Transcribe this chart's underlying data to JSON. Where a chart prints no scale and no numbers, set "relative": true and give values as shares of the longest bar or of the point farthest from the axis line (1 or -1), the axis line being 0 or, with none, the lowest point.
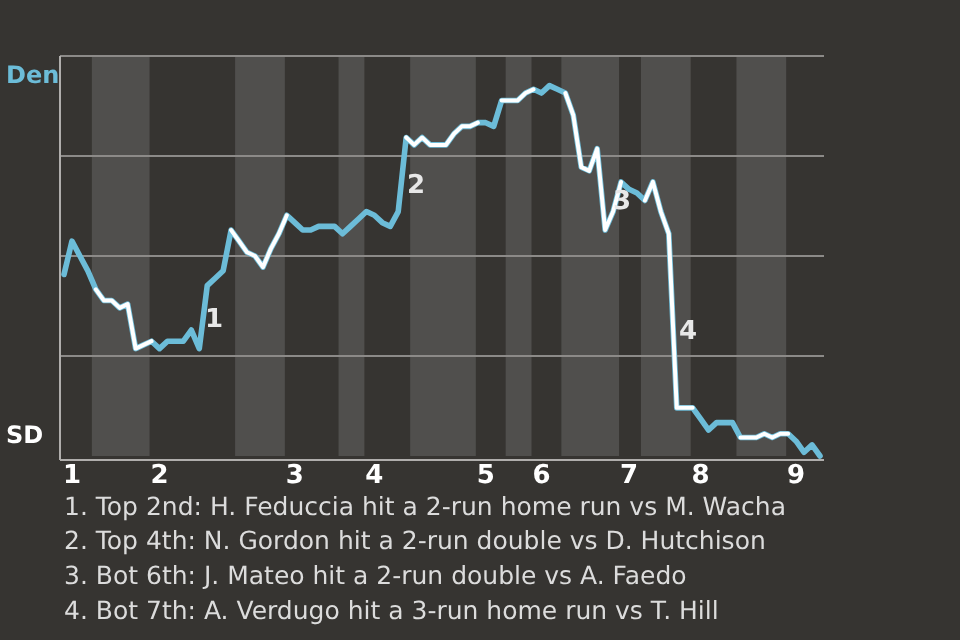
{
  "chart_data": {
    "type": "line",
    "relative": true,
    "categories": [
      null,
      "1",
      null,
      null,
      null,
      null,
      null,
      null,
      null,
      null,
      null,
      null,
      "2",
      null,
      null,
      null,
      null,
      null,
      null,
      null,
      null,
      null,
      null,
      null,
      null,
      null,
      null,
      null,
      null,
      "3",
      null,
      null,
      null,
      null,
      null,
      null,
      null,
      null,
      null,
      "4",
      null,
      null,
      null,
      null,
      null,
      null,
      null,
      null,
      null,
      null,
      null,
      null,
      null,
      "5",
      null,
      null,
      null,
      null,
      null,
      null,
      "6",
      null,
      null,
      null,
      null,
      null,
      null,
      null,
      null,
      null,
      null,
      "7",
      null,
      null,
      null,
      null,
      null,
      null,
      null,
      null,
      "8",
      null,
      null,
      null,
      null,
      null,
      null,
      null,
      null,
      null,
      null,
      null,
      "9",
      null,
      null,
      null
    ],
    "grid": "y",
    "marker": "none",
    "line_style": "solid",
    "series": [
      {
        "name": "Den",
        "color": "#6cbcd8",
        "values": [
          0.49,
          0.58,
          0.54,
          0.5,
          0.45,
          0.42,
          0.42,
          0.4,
          0.41,
          0.29,
          0.3,
          0.31,
          0.29,
          0.31,
          0.31,
          0.31,
          0.34,
          0.29,
          0.46,
          0.48,
          0.5,
          0.61,
          0.58,
          0.55,
          0.54,
          0.51,
          0.56,
          0.6,
          0.65,
          0.63,
          0.61,
          0.61,
          0.62,
          0.62,
          0.62,
          0.6,
          0.62,
          0.64,
          0.66,
          0.65,
          0.63,
          0.62,
          0.66,
          0.86,
          0.84,
          0.86,
          0.84,
          0.84,
          0.84,
          0.87,
          0.89,
          0.89,
          0.9,
          0.9,
          0.89,
          0.96,
          0.96,
          0.96,
          0.98,
          0.99,
          0.98,
          1,
          0.99,
          0.98,
          0.92,
          0.78,
          0.77,
          0.83,
          0.61,
          0.66,
          0.74,
          0.72,
          0.71,
          0.69,
          0.74,
          0.66,
          0.6,
          0.13,
          0.13,
          0.13,
          0.1,
          0.07,
          0.09,
          0.09,
          0.09,
          0.05,
          0.05,
          0.05,
          0.06,
          0.05,
          0.06,
          0.06,
          0.04,
          0.01,
          0.03,
          0
        ]
      },
      {
        "name": "SD",
        "color": "#ffffff",
        "values": [
          null,
          null,
          null,
          null,
          0.45,
          0.42,
          0.42,
          0.4,
          0.41,
          0.29,
          0.3,
          0.31,
          null,
          null,
          null,
          null,
          null,
          null,
          null,
          null,
          null,
          0.61,
          0.58,
          0.55,
          0.54,
          0.51,
          0.56,
          0.6,
          0.65,
          null,
          null,
          null,
          null,
          null,
          null,
          null,
          null,
          null,
          null,
          null,
          null,
          null,
          null,
          0.86,
          0.84,
          0.86,
          0.84,
          0.84,
          0.84,
          0.87,
          0.89,
          0.89,
          0.9,
          null,
          null,
          0.96,
          0.96,
          0.96,
          0.98,
          0.99,
          null,
          null,
          null,
          0.98,
          0.92,
          0.78,
          0.77,
          0.83,
          0.61,
          0.66,
          0.74,
          null,
          null,
          0.69,
          0.74,
          0.66,
          0.6,
          0.13,
          0.13,
          0.13,
          null,
          null,
          null,
          null,
          null,
          0.05,
          0.05,
          0.05,
          0.06,
          0.05,
          0.06,
          0.06,
          null,
          null,
          null,
          null
        ]
      }
    ],
    "annotations": [
      "1",
      "2",
      "3",
      "4",
      "1. Top 2nd: H. Feduccia hit a 2-run home run vs M. Wacha",
      "2. Top 4th: N. Gordon hit a 2-run double vs D. Hutchison",
      "3. Bot 6th: J. Mateo hit a 2-run double vs A. Faedo",
      "4. Bot 7th: A. Verdugo hit a 3-run home run vs T. Hill"
    ]
  }
}
